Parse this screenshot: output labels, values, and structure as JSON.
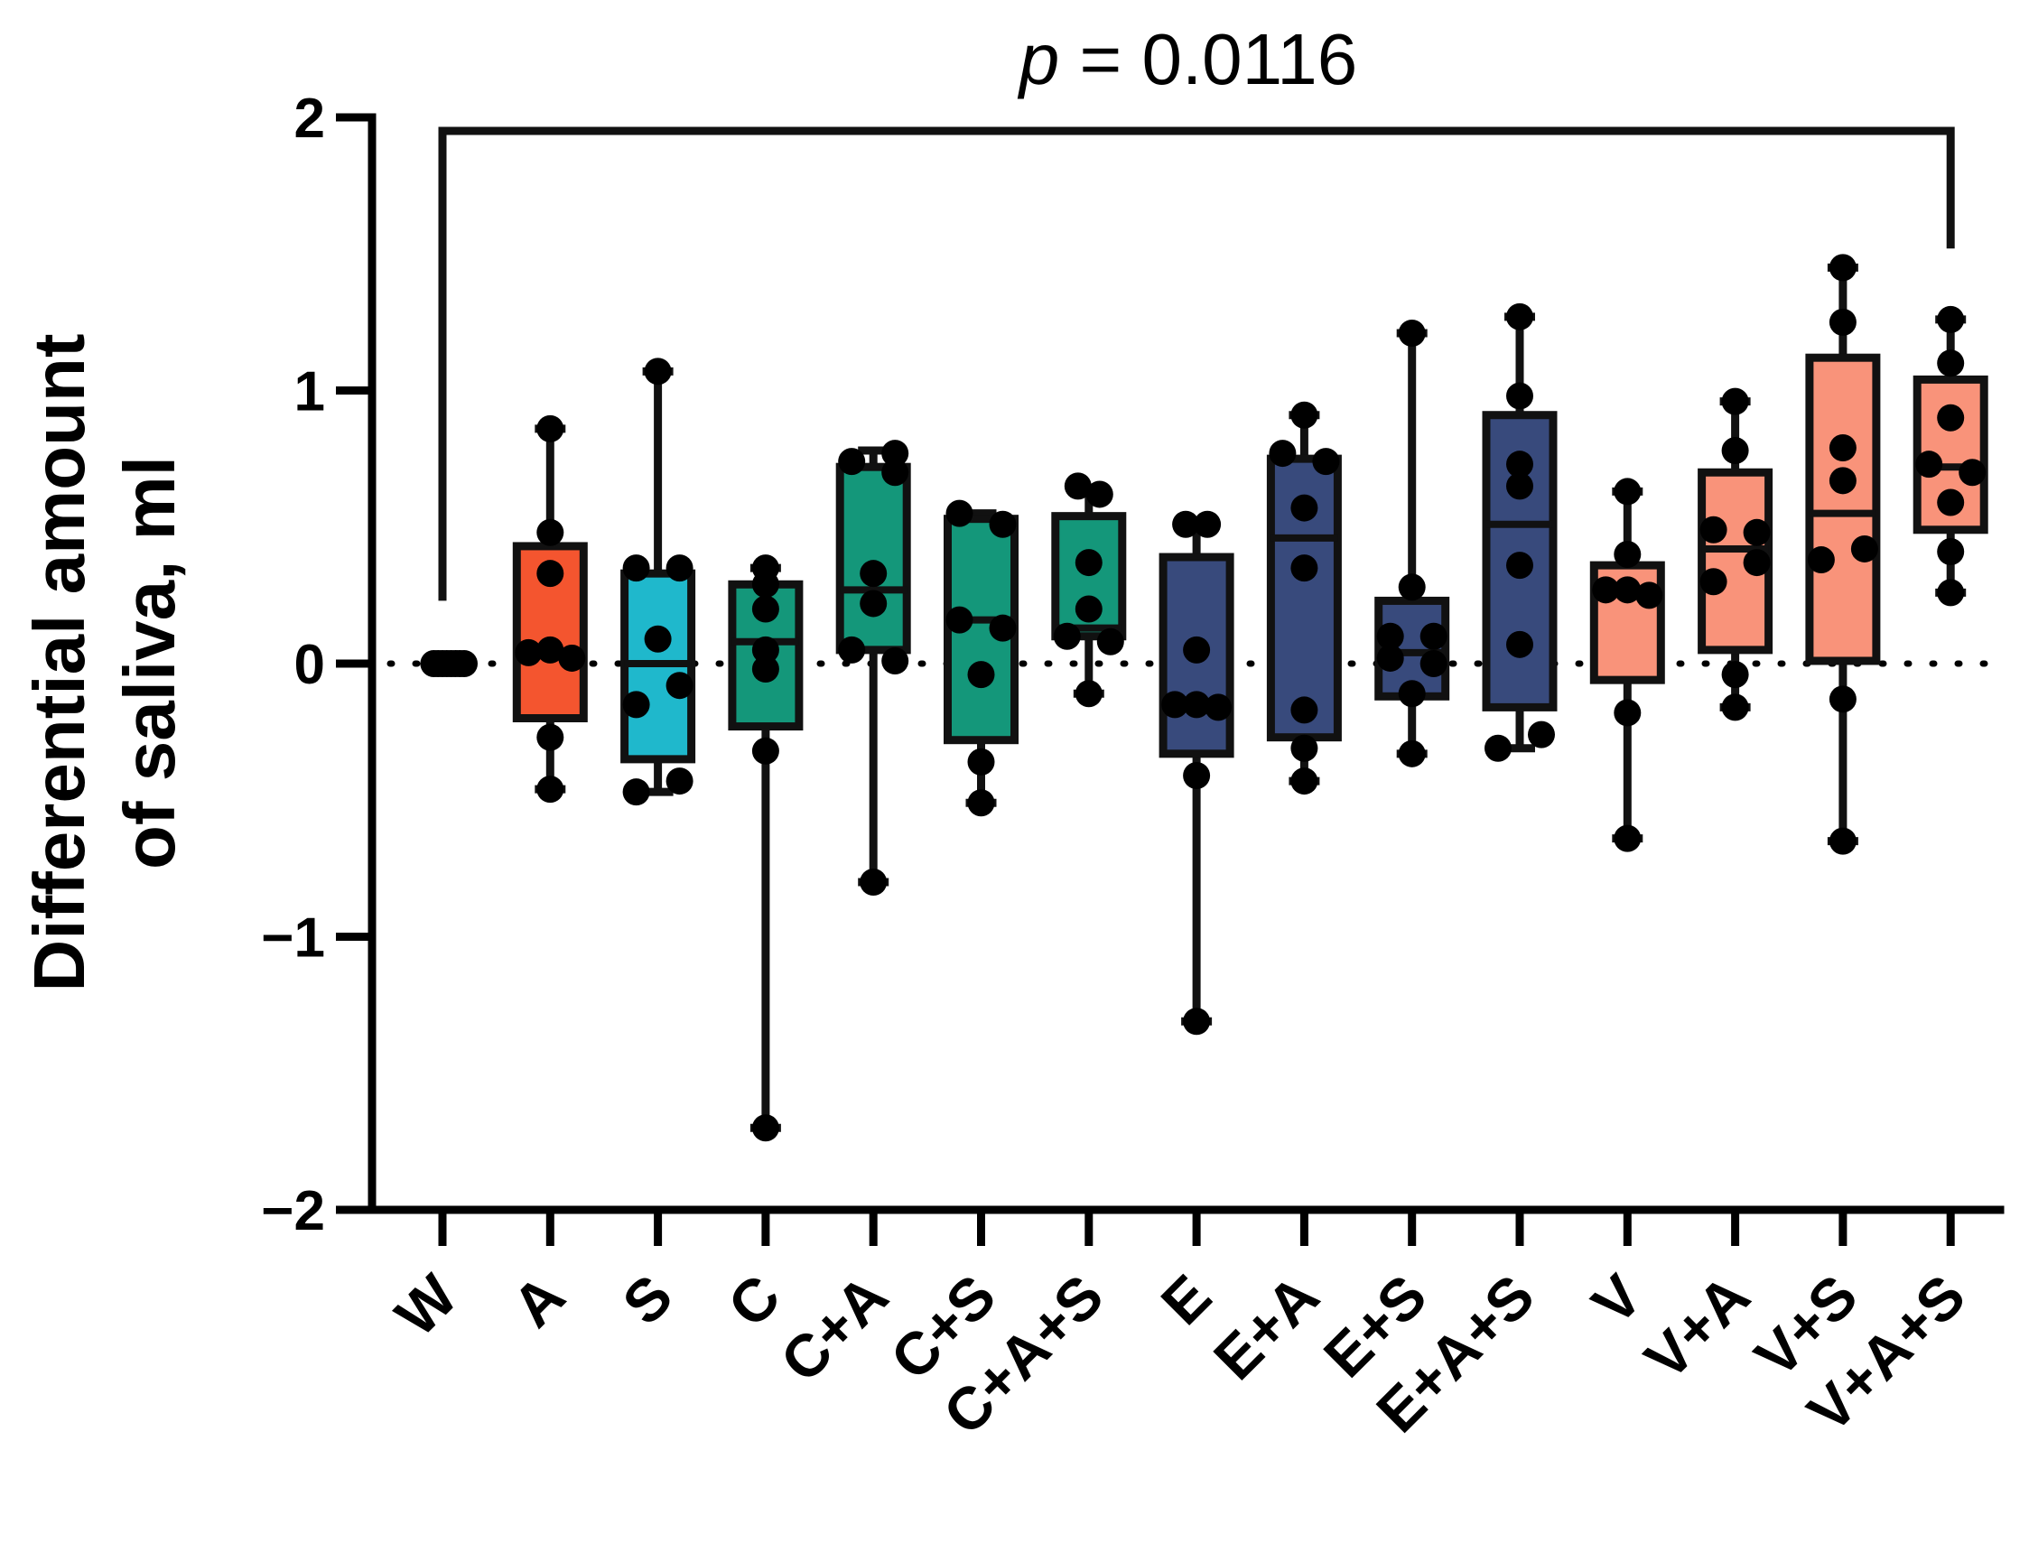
{
  "chart_data": {
    "type": "box",
    "title": "",
    "xlabel": "",
    "ylabel_lines": [
      "Differential amount",
      "of saliva, ml"
    ],
    "ylim": [
      -2,
      2
    ],
    "yticks": [
      -2,
      -1,
      0,
      1,
      2
    ],
    "ytick_labels": [
      "−2",
      "−1",
      "0",
      "1",
      "2"
    ],
    "reference_line": {
      "y": 0,
      "style": "dotted"
    },
    "categories": [
      "W",
      "A",
      "S",
      "C",
      "C+A",
      "C+S",
      "C+A+S",
      "E",
      "E+A",
      "E+S",
      "E+A+S",
      "V",
      "V+A",
      "V+S",
      "V+A+S"
    ],
    "colors": [
      "#ffffff",
      "#f4552f",
      "#1fb8cc",
      "#14977a",
      "#14977a",
      "#14977a",
      "#14977a",
      "#384a7c",
      "#384a7c",
      "#384a7c",
      "#384a7c",
      "#f9937a",
      "#f9937a",
      "#f9937a",
      "#f9937a"
    ],
    "boxes": [
      {
        "min": 0,
        "q1": 0,
        "median": 0,
        "q3": 0,
        "max": 0
      },
      {
        "min": -0.46,
        "q1": -0.2,
        "median": 0.04,
        "q3": 0.43,
        "max": 0.86
      },
      {
        "min": -0.47,
        "q1": -0.35,
        "median": 0.0,
        "q3": 0.33,
        "max": 1.07
      },
      {
        "min": -1.7,
        "q1": -0.23,
        "median": 0.08,
        "q3": 0.29,
        "max": 0.35
      },
      {
        "min": -0.8,
        "q1": 0.05,
        "median": 0.27,
        "q3": 0.72,
        "max": 0.78
      },
      {
        "min": -0.51,
        "q1": -0.28,
        "median": 0.16,
        "q3": 0.53,
        "max": 0.55
      },
      {
        "min": -0.11,
        "q1": 0.1,
        "median": 0.13,
        "q3": 0.54,
        "max": 0.64
      },
      {
        "min": -1.31,
        "q1": -0.33,
        "median": -0.15,
        "q3": 0.39,
        "max": 0.51
      },
      {
        "min": -0.43,
        "q1": -0.27,
        "median": 0.46,
        "q3": 0.75,
        "max": 0.91
      },
      {
        "min": -0.33,
        "q1": -0.12,
        "median": 0.04,
        "q3": 0.23,
        "max": 1.21
      },
      {
        "min": -0.31,
        "q1": -0.16,
        "median": 0.51,
        "q3": 0.91,
        "max": 1.27
      },
      {
        "min": -0.64,
        "q1": -0.06,
        "median": 0.27,
        "q3": 0.36,
        "max": 0.63
      },
      {
        "min": -0.16,
        "q1": 0.05,
        "median": 0.42,
        "q3": 0.7,
        "max": 0.96
      },
      {
        "min": -0.65,
        "q1": 0.01,
        "median": 0.55,
        "q3": 1.12,
        "max": 1.45
      },
      {
        "min": 0.26,
        "q1": 0.49,
        "median": 0.72,
        "q3": 1.04,
        "max": 1.26
      }
    ],
    "points": [
      [
        [
          -0.08,
          0
        ],
        [
          -0.04,
          0
        ],
        [
          0,
          0
        ],
        [
          0.04,
          0
        ],
        [
          0.08,
          0
        ],
        [
          0.12,
          0
        ],
        [
          0.16,
          0
        ],
        [
          0.2,
          0
        ]
      ],
      [
        [
          0,
          0.86
        ],
        [
          0,
          0.48
        ],
        [
          0,
          0.33
        ],
        [
          -0.2,
          0.04
        ],
        [
          0,
          0.05
        ],
        [
          0.2,
          0.02
        ],
        [
          0,
          -0.27
        ],
        [
          0,
          -0.46
        ]
      ],
      [
        [
          0,
          1.07
        ],
        [
          -0.2,
          0.35
        ],
        [
          0.2,
          0.35
        ],
        [
          0,
          0.09
        ],
        [
          0.2,
          -0.08
        ],
        [
          -0.2,
          -0.15
        ],
        [
          -0.2,
          -0.47
        ],
        [
          0.2,
          -0.43
        ]
      ],
      [
        [
          0,
          0.35
        ],
        [
          0,
          0.29
        ],
        [
          0,
          0.2
        ],
        [
          0,
          0.05
        ],
        [
          0,
          -0.02
        ],
        [
          0,
          -0.32
        ],
        [
          0,
          -1.7
        ]
      ],
      [
        [
          -0.2,
          0.74
        ],
        [
          0.2,
          0.77
        ],
        [
          0.2,
          0.7
        ],
        [
          0,
          0.33
        ],
        [
          0,
          0.22
        ],
        [
          -0.2,
          0.05
        ],
        [
          0.2,
          0.01
        ],
        [
          0,
          -0.8
        ]
      ],
      [
        [
          -0.2,
          0.55
        ],
        [
          0.2,
          0.51
        ],
        [
          -0.2,
          0.16
        ],
        [
          0.2,
          0.13
        ],
        [
          0,
          -0.04
        ],
        [
          0,
          -0.36
        ],
        [
          0,
          -0.51
        ]
      ],
      [
        [
          -0.1,
          0.65
        ],
        [
          0.1,
          0.62
        ],
        [
          0,
          0.37
        ],
        [
          0,
          0.2
        ],
        [
          -0.2,
          0.1
        ],
        [
          0.2,
          0.08
        ],
        [
          0,
          -0.11
        ]
      ],
      [
        [
          -0.1,
          0.51
        ],
        [
          0.1,
          0.51
        ],
        [
          0,
          0.05
        ],
        [
          -0.2,
          -0.15
        ],
        [
          0,
          -0.15
        ],
        [
          0.2,
          -0.16
        ],
        [
          0,
          -0.41
        ],
        [
          0,
          -1.31
        ]
      ],
      [
        [
          -0.2,
          0.77
        ],
        [
          0.2,
          0.74
        ],
        [
          0,
          0.91
        ],
        [
          0,
          0.57
        ],
        [
          0,
          0.35
        ],
        [
          0,
          -0.17
        ],
        [
          0,
          -0.31
        ],
        [
          0,
          -0.43
        ]
      ],
      [
        [
          0,
          1.21
        ],
        [
          0,
          0.28
        ],
        [
          -0.2,
          0.1
        ],
        [
          0.2,
          0.1
        ],
        [
          -0.2,
          0.02
        ],
        [
          0.2,
          0.0
        ],
        [
          0,
          -0.11
        ],
        [
          0,
          -0.33
        ]
      ],
      [
        [
          0,
          1.27
        ],
        [
          0,
          0.98
        ],
        [
          0,
          0.73
        ],
        [
          0,
          0.65
        ],
        [
          0,
          0.36
        ],
        [
          0,
          0.07
        ],
        [
          -0.2,
          -0.31
        ],
        [
          0.2,
          -0.26
        ]
      ],
      [
        [
          0,
          0.63
        ],
        [
          0,
          0.4
        ],
        [
          -0.2,
          0.27
        ],
        [
          0,
          0.27
        ],
        [
          0.2,
          0.25
        ],
        [
          0,
          -0.18
        ],
        [
          0,
          -0.64
        ]
      ],
      [
        [
          0,
          0.96
        ],
        [
          0,
          0.78
        ],
        [
          -0.2,
          0.49
        ],
        [
          0.2,
          0.48
        ],
        [
          -0.2,
          0.3
        ],
        [
          0.2,
          0.37
        ],
        [
          0,
          -0.04
        ],
        [
          0,
          -0.16
        ]
      ],
      [
        [
          0,
          1.45
        ],
        [
          0,
          1.25
        ],
        [
          0,
          0.79
        ],
        [
          0,
          0.67
        ],
        [
          -0.2,
          0.38
        ],
        [
          0.2,
          0.42
        ],
        [
          0,
          -0.13
        ],
        [
          0,
          -0.65
        ]
      ],
      [
        [
          0,
          1.26
        ],
        [
          0,
          1.1
        ],
        [
          0,
          0.9
        ],
        [
          -0.2,
          0.73
        ],
        [
          0.2,
          0.7
        ],
        [
          0,
          0.59
        ],
        [
          0,
          0.41
        ],
        [
          0,
          0.26
        ]
      ]
    ],
    "significance": {
      "from": "W",
      "to": "V+A+S",
      "label_italic": "p",
      "label_rest": " = 0.0116"
    }
  }
}
